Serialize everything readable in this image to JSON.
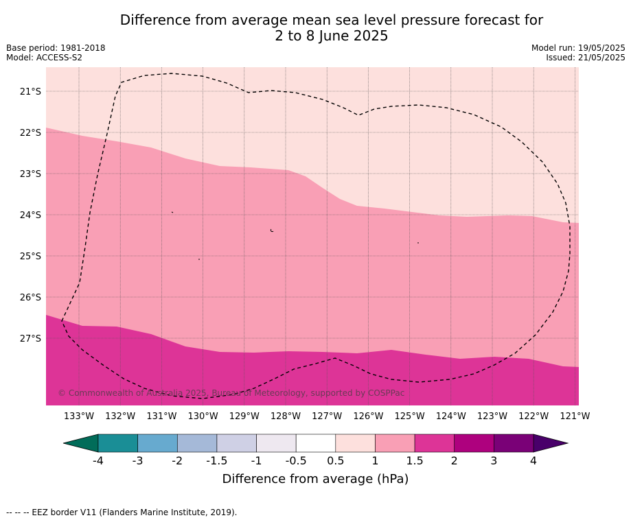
{
  "title_line1": "Difference from average mean sea level pressure forecast for",
  "title_line2": "2 to 8 June 2025",
  "base_period": "Base period: 1981-2018",
  "model": "Model: ACCESS-S2",
  "model_run": "Model run: 19/05/2025",
  "issued": "Issued: 21/05/2025",
  "copyright": "© Commonwealth of Australia 2025, Bureau of Meteorology, supported by COSPPac",
  "lat_labels": [
    "21°S",
    "22°S",
    "23°S",
    "24°S",
    "25°S",
    "26°S",
    "27°S"
  ],
  "lon_labels": [
    "133°W",
    "132°W",
    "131°W",
    "130°W",
    "129°W",
    "128°W",
    "127°W",
    "126°W",
    "125°W",
    "124°W",
    "123°W",
    "122°W",
    "121°W"
  ],
  "colorbar": {
    "ticks": [
      "-4",
      "-3",
      "-2",
      "-1.5",
      "-1",
      "-0.5",
      "0.5",
      "1",
      "1.5",
      "2",
      "3",
      "4"
    ],
    "colors": [
      "#1a8e96",
      "#67aacf",
      "#a5b9d8",
      "#cfd0e5",
      "#eee8f0",
      "#ffffff",
      "#fde0dd",
      "#f99fb5",
      "#dd3497",
      "#ae017e",
      "#7a0177"
    ],
    "under_color": "#016c59",
    "over_color": "#49006a",
    "label": "Difference from average (hPa)"
  },
  "field_colors": {
    "band_05_1": "#fde0dd",
    "band_1_15": "#f99fb5",
    "band_15_2": "#dd3497"
  },
  "legend_note": "-- -- -- EEZ border V11 (Flanders Marine Institute, 2019)."
}
